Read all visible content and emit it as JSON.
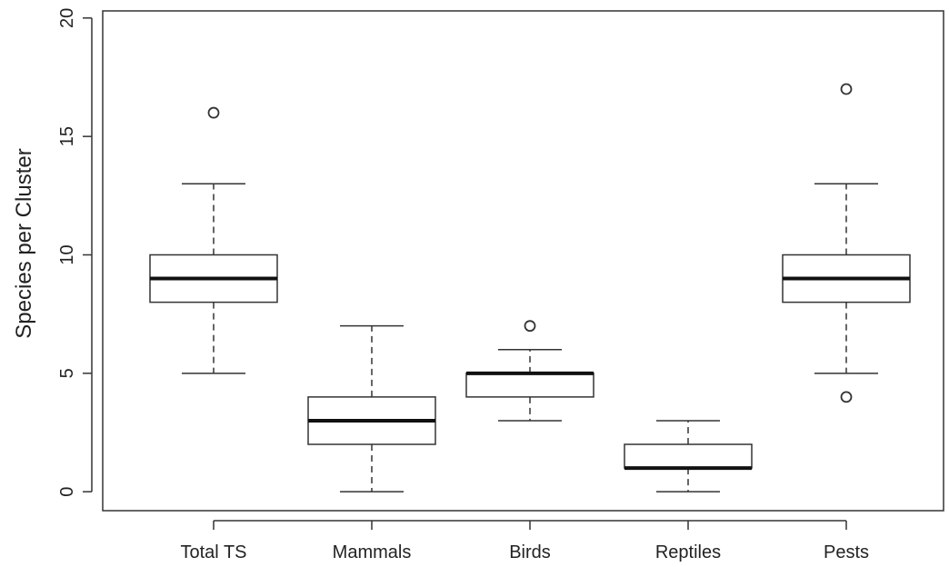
{
  "chart_data": {
    "type": "boxplot",
    "title": "",
    "xlabel": "",
    "ylabel": "Species per Cluster",
    "ylim": [
      -0.8,
      20.3
    ],
    "yticks": [
      0,
      5,
      10,
      15,
      20
    ],
    "grid": false,
    "categories": [
      "Total TS",
      "Mammals",
      "Birds",
      "Reptiles",
      "Pests"
    ],
    "boxes": [
      {
        "name": "Total TS",
        "whisker_low": 5,
        "q1": 8,
        "median": 9,
        "q3": 10,
        "whisker_high": 13,
        "outliers": [
          16
        ]
      },
      {
        "name": "Mammals",
        "whisker_low": 0,
        "q1": 2,
        "median": 3,
        "q3": 4,
        "whisker_high": 7,
        "outliers": []
      },
      {
        "name": "Birds",
        "whisker_low": 3,
        "q1": 4,
        "median": 5,
        "q3": 5,
        "whisker_high": 6,
        "outliers": [
          7
        ]
      },
      {
        "name": "Reptiles",
        "whisker_low": 0,
        "q1": 1,
        "median": 1,
        "q3": 2,
        "whisker_high": 3,
        "outliers": []
      },
      {
        "name": "Pests",
        "whisker_low": 5,
        "q1": 8,
        "median": 9,
        "q3": 10,
        "whisker_high": 13,
        "outliers": [
          4,
          17
        ]
      }
    ]
  }
}
